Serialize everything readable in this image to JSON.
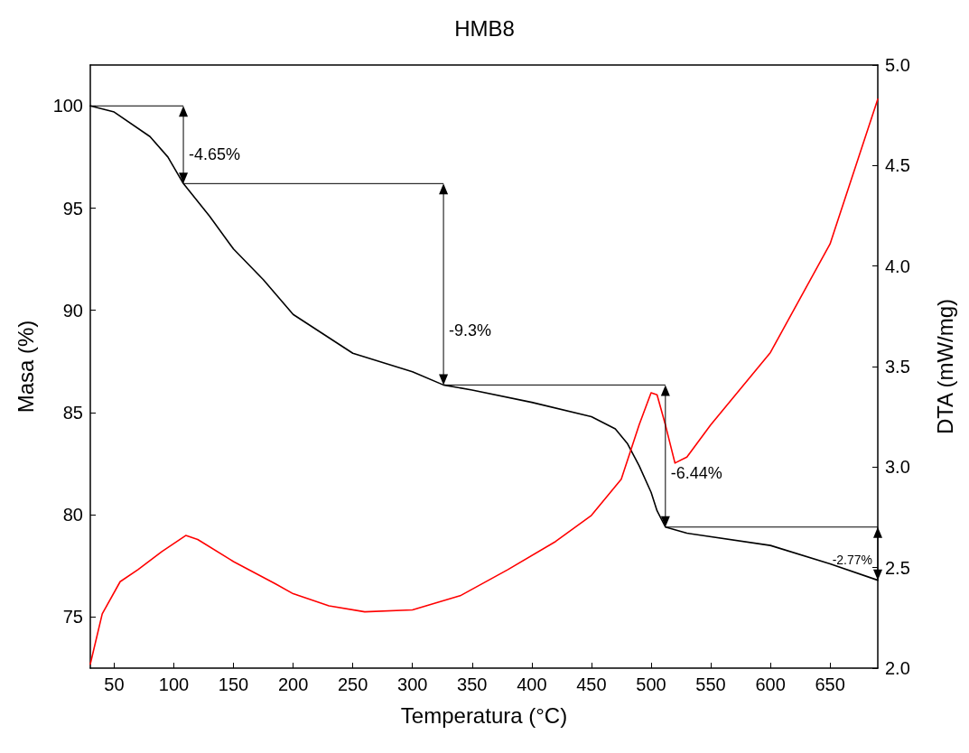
{
  "chart_data": {
    "type": "line",
    "title": "HMB8",
    "xlabel": "Temperatura (°C)",
    "ylabel": "Masa (%)",
    "y2label": "DTA (mW/mg)",
    "xlim": [
      30,
      690
    ],
    "xticks": [
      50,
      100,
      150,
      200,
      250,
      300,
      350,
      400,
      450,
      500,
      550,
      600,
      650
    ],
    "ylim": [
      72.5,
      102
    ],
    "yticks": [
      75,
      80,
      85,
      90,
      95,
      100
    ],
    "y2lim": [
      2,
      5
    ],
    "y2ticks": [
      {
        "value": 2,
        "label": "2.0"
      },
      {
        "value": 2.5,
        "label": "2.5"
      },
      {
        "value": 3,
        "label": "3.0"
      },
      {
        "value": 3.5,
        "label": "3.5"
      },
      {
        "value": 4,
        "label": "4.0"
      },
      {
        "value": 4.5,
        "label": "4.5"
      },
      {
        "value": 5,
        "label": "5.0"
      }
    ],
    "grid": false,
    "marker": "none",
    "line_style": "solid",
    "series": [
      {
        "color": "#000000",
        "x": [
          30,
          50,
          80,
          95,
          108,
          130,
          150,
          175,
          200,
          250,
          300,
          326,
          350,
          400,
          450,
          470,
          480,
          490,
          500,
          505,
          512,
          530,
          600,
          650,
          690
        ],
        "values": [
          100,
          99.7,
          98.5,
          97.5,
          96.2,
          94.6,
          93.0,
          91.5,
          89.8,
          87.9,
          87.0,
          86.35,
          86.1,
          85.5,
          84.8,
          84.2,
          83.5,
          82.4,
          81.1,
          80.2,
          79.4,
          79.1,
          78.5,
          77.6,
          76.8
        ]
      },
      {
        "color": "#ff0000",
        "axis": "y2",
        "x": [
          30,
          40,
          55,
          70,
          90,
          110,
          120,
          150,
          185,
          200,
          230,
          260,
          300,
          340,
          380,
          420,
          450,
          475,
          490,
          500,
          505,
          512,
          520,
          530,
          550,
          600,
          650,
          690
        ],
        "values": [
          2.02,
          2.27,
          2.43,
          2.49,
          2.58,
          2.66,
          2.64,
          2.53,
          2.42,
          2.37,
          2.31,
          2.28,
          2.29,
          2.36,
          2.49,
          2.63,
          2.76,
          2.94,
          3.21,
          3.37,
          3.36,
          3.21,
          3.02,
          3.05,
          3.21,
          3.57,
          4.11,
          4.83
        ]
      }
    ],
    "annotations": [
      {
        "text": "-4.65%",
        "x": 108,
        "y": 96.2
      },
      {
        "text": "-9.3%",
        "x": 326,
        "y": 86.35
      },
      {
        "text": "-6.44%",
        "x": 512,
        "y": 79.4
      },
      {
        "text": "-2.77%",
        "x": 690,
        "y": 76.8
      }
    ]
  }
}
